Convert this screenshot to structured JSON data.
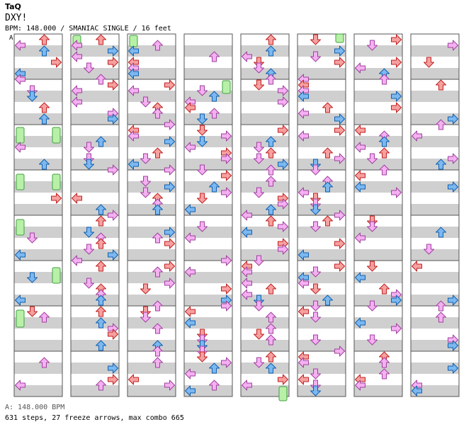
{
  "header": {
    "artist": "TaQ",
    "title": "DXY!",
    "info": "BPM: 148.000 / SMANIAC SINGLE / 16 feet",
    "marker": "A"
  },
  "footer": {
    "bpm_line": "A: 148.000 BPM",
    "stats": "631 steps, 27 freeze arrows, max combo 665"
  },
  "colors": {
    "band": "#cfcfcf",
    "border": "#555555",
    "quarter_fill": "#f6a0a0",
    "quarter_stroke": "#c02020",
    "eighth_fill": "#7cb8f0",
    "eighth_stroke": "#1060b0",
    "sixteenth_fill": "#f4b0f0",
    "sixteenth_stroke": "#a040a0",
    "freeze_fill": "#b8f0a8",
    "freeze_stroke": "#40a040"
  },
  "icons": [
    "left-arrow-icon",
    "down-arrow-icon",
    "up-arrow-icon",
    "right-arrow-icon",
    "freeze-arrow-icon"
  ],
  "chart": {
    "columns": 8,
    "measures_per_column": 8,
    "lanes": [
      "left",
      "down",
      "up",
      "right"
    ],
    "seed": 148
  }
}
